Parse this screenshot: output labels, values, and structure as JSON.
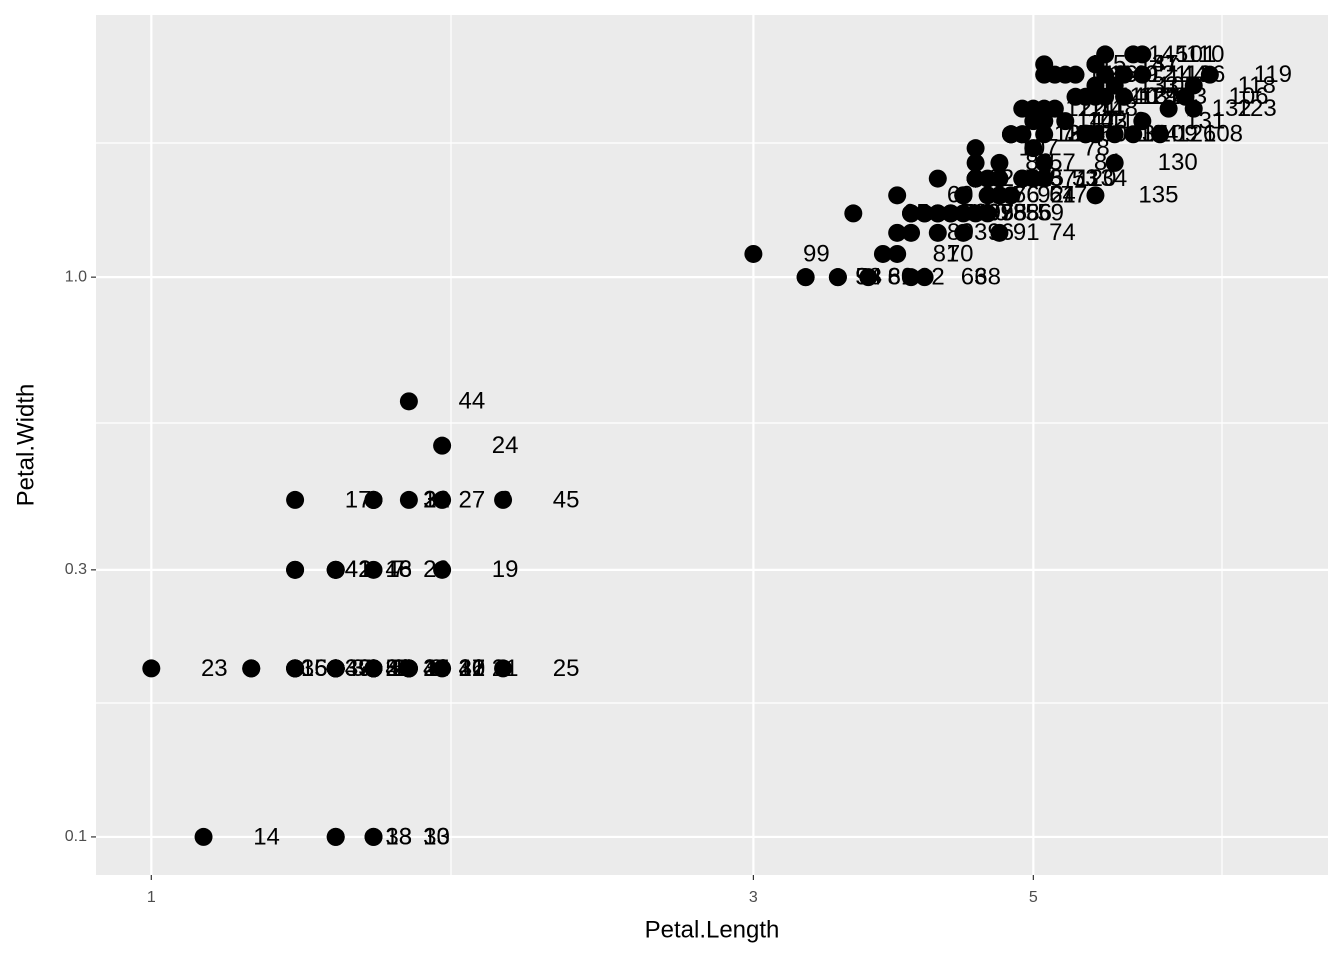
{
  "chart_data": {
    "type": "scatter",
    "xlabel": "Petal.Length",
    "ylabel": "Petal.Width",
    "xscale": "log",
    "yscale": "log",
    "xlim": [
      0.904,
      8.56
    ],
    "ylim": [
      0.0855,
      2.94
    ],
    "xticks": [
      1,
      3,
      5
    ],
    "yticks": [
      0.1,
      0.3,
      {
        "value": 1,
        "label": "1.0"
      }
    ],
    "grid": true,
    "color": "#000000",
    "x": [
      1.4,
      1.4,
      1.3,
      1.5,
      1.4,
      1.7,
      1.4,
      1.5,
      1.4,
      1.5,
      1.5,
      1.6,
      1.4,
      1.1,
      1.2,
      1.5,
      1.3,
      1.4,
      1.7,
      1.5,
      1.7,
      1.5,
      1.0,
      1.7,
      1.9,
      1.6,
      1.6,
      1.5,
      1.4,
      1.6,
      1.6,
      1.5,
      1.5,
      1.4,
      1.5,
      1.2,
      1.3,
      1.4,
      1.3,
      1.5,
      1.3,
      1.3,
      1.3,
      1.6,
      1.9,
      1.4,
      1.6,
      1.4,
      1.5,
      1.4,
      4.7,
      4.5,
      4.9,
      4.0,
      4.6,
      4.5,
      4.7,
      3.3,
      4.6,
      3.9,
      3.5,
      4.2,
      4.0,
      4.7,
      3.6,
      4.4,
      4.5,
      4.1,
      4.5,
      3.9,
      4.8,
      4.0,
      4.9,
      4.7,
      4.3,
      4.4,
      4.8,
      5.0,
      4.5,
      3.5,
      3.8,
      3.7,
      3.9,
      5.1,
      4.5,
      4.5,
      4.7,
      4.4,
      4.1,
      4.0,
      4.4,
      4.6,
      4.0,
      3.3,
      4.2,
      4.2,
      4.2,
      4.3,
      3.0,
      4.1,
      6.0,
      5.1,
      5.9,
      5.6,
      5.8,
      6.6,
      4.5,
      6.3,
      5.8,
      6.1,
      5.1,
      5.3,
      5.5,
      5.0,
      5.1,
      5.3,
      5.5,
      6.7,
      6.9,
      5.0,
      5.7,
      4.9,
      6.7,
      4.9,
      5.7,
      6.0,
      4.8,
      4.9,
      5.6,
      5.8,
      6.1,
      6.4,
      5.6,
      5.1,
      5.6,
      6.1,
      5.6,
      5.5,
      4.8,
      5.4,
      5.6,
      5.1,
      5.1,
      5.9,
      5.7,
      5.2,
      5.0,
      5.2,
      5.4,
      5.1
    ],
    "values": [
      0.2,
      0.2,
      0.2,
      0.2,
      0.2,
      0.4,
      0.3,
      0.2,
      0.2,
      0.1,
      0.2,
      0.2,
      0.1,
      0.1,
      0.2,
      0.4,
      0.4,
      0.3,
      0.3,
      0.3,
      0.2,
      0.4,
      0.2,
      0.5,
      0.2,
      0.2,
      0.4,
      0.2,
      0.2,
      0.2,
      0.2,
      0.4,
      0.1,
      0.2,
      0.2,
      0.2,
      0.2,
      0.1,
      0.2,
      0.2,
      0.3,
      0.3,
      0.2,
      0.6,
      0.4,
      0.3,
      0.2,
      0.2,
      0.2,
      0.2,
      1.4,
      1.5,
      1.5,
      1.3,
      1.5,
      1.3,
      1.6,
      1.0,
      1.3,
      1.4,
      1.0,
      1.5,
      1.0,
      1.4,
      1.3,
      1.4,
      1.5,
      1.0,
      1.5,
      1.1,
      1.8,
      1.3,
      1.5,
      1.2,
      1.3,
      1.4,
      1.4,
      1.7,
      1.5,
      1.0,
      1.1,
      1.0,
      1.2,
      1.6,
      1.5,
      1.6,
      1.5,
      1.3,
      1.3,
      1.3,
      1.2,
      1.4,
      1.2,
      1.0,
      1.3,
      1.2,
      1.3,
      1.3,
      1.1,
      1.3,
      2.5,
      1.9,
      2.1,
      1.8,
      2.2,
      2.1,
      1.7,
      1.8,
      1.8,
      2.5,
      2.0,
      1.9,
      2.1,
      2.0,
      2.4,
      2.3,
      1.8,
      2.2,
      2.3,
      1.5,
      2.3,
      2.0,
      2.0,
      1.8,
      2.1,
      1.8,
      1.8,
      1.8,
      2.1,
      1.6,
      1.9,
      2.0,
      2.2,
      1.5,
      1.4,
      2.3,
      2.4,
      1.8,
      1.8,
      2.1,
      2.4,
      2.3,
      1.9,
      2.3,
      2.5,
      2.3,
      1.9,
      2.0,
      2.3,
      1.8
    ],
    "labels": [
      1,
      2,
      3,
      4,
      5,
      6,
      7,
      8,
      9,
      10,
      11,
      12,
      13,
      14,
      15,
      16,
      17,
      18,
      19,
      20,
      21,
      22,
      23,
      24,
      25,
      26,
      27,
      28,
      29,
      30,
      31,
      32,
      33,
      34,
      35,
      36,
      37,
      38,
      39,
      40,
      41,
      42,
      43,
      44,
      45,
      46,
      47,
      48,
      49,
      50,
      51,
      52,
      53,
      54,
      55,
      56,
      57,
      58,
      59,
      60,
      61,
      62,
      63,
      64,
      65,
      66,
      67,
      68,
      69,
      70,
      71,
      72,
      73,
      74,
      75,
      76,
      77,
      78,
      79,
      80,
      81,
      82,
      83,
      84,
      85,
      86,
      87,
      88,
      89,
      90,
      91,
      92,
      93,
      94,
      95,
      96,
      97,
      98,
      99,
      100,
      101,
      102,
      103,
      104,
      105,
      106,
      107,
      108,
      109,
      110,
      111,
      112,
      113,
      114,
      115,
      116,
      117,
      118,
      119,
      120,
      121,
      122,
      123,
      124,
      125,
      126,
      127,
      128,
      129,
      130,
      131,
      132,
      133,
      134,
      135,
      136,
      137,
      138,
      139,
      140,
      141,
      142,
      143,
      144,
      145,
      146,
      147,
      148,
      149,
      150
    ]
  }
}
